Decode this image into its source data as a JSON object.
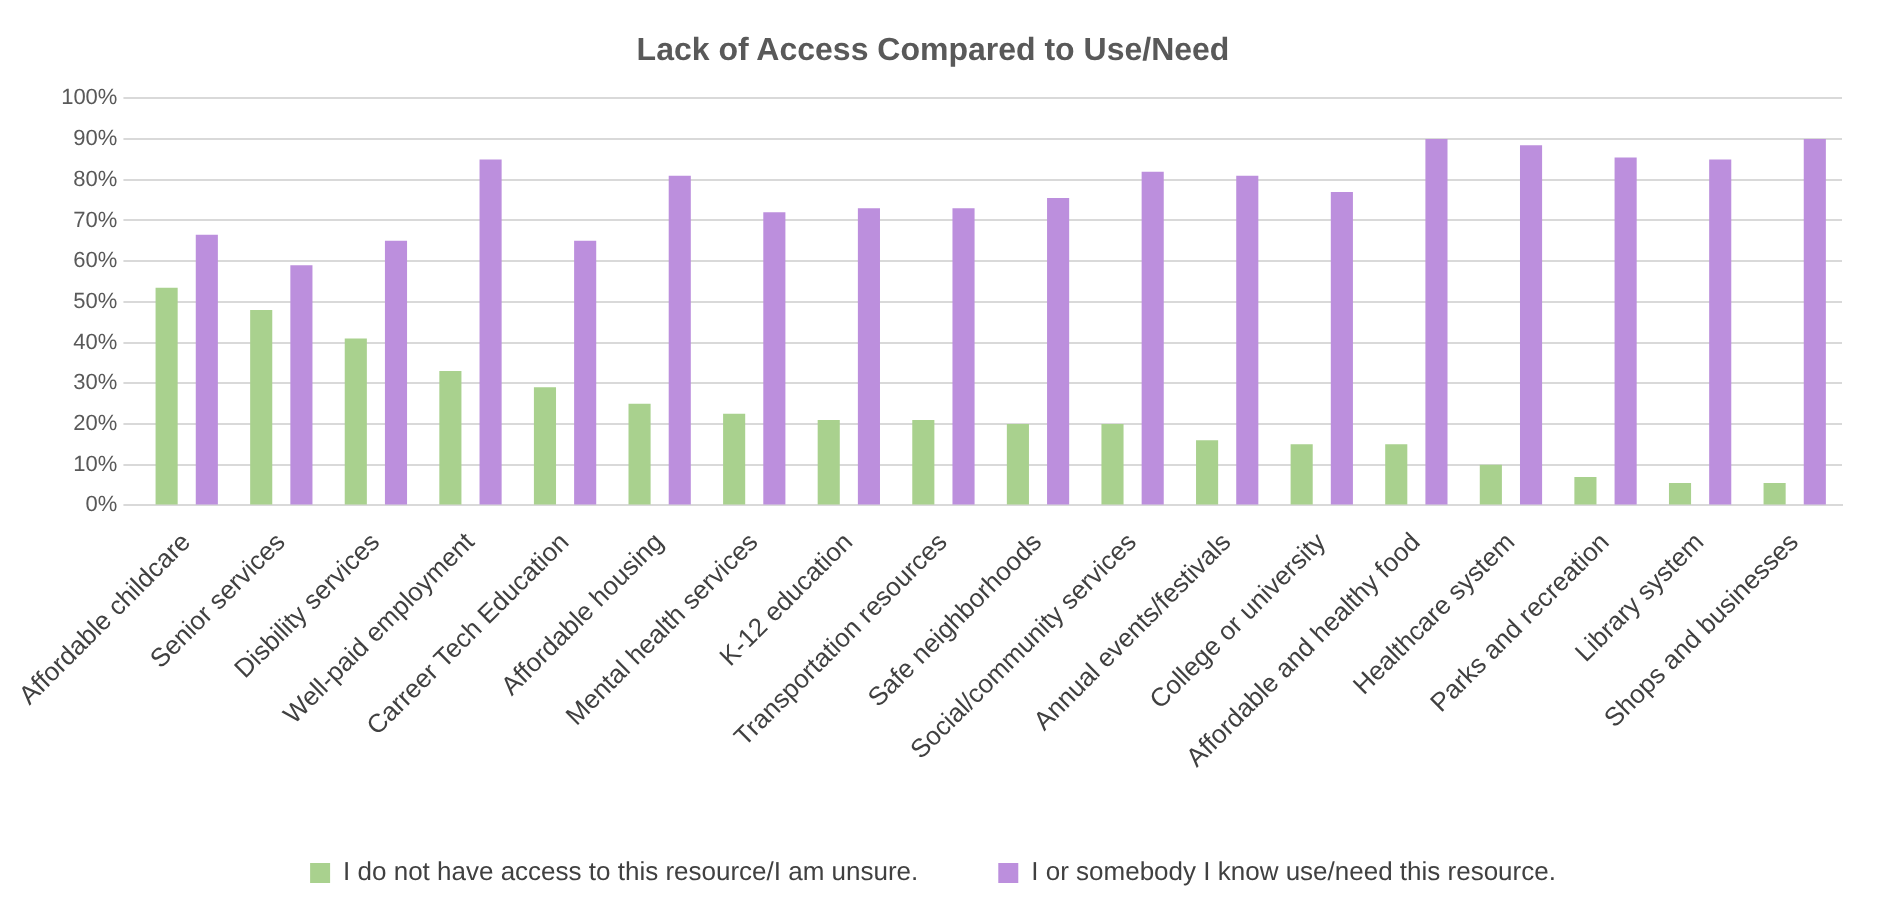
{
  "chart_data": {
    "type": "bar",
    "title": "Lack of Access Compared to Use/Need",
    "categories": [
      "Affordable childcare",
      "Senior services",
      "Disbility services",
      "Well-paid employment",
      "Carreer Tech Education",
      "Affordable housing",
      "Mental health services",
      "K-12 education",
      "Transportation resources",
      "Safe neighborhoods",
      "Social/community services",
      "Annual events/festivals",
      "College or university",
      "Affordable and healthy food",
      "Healthcare system",
      "Parks and recreation",
      "Library system",
      "Shops and businesses"
    ],
    "series": [
      {
        "name": "I do not have access to this resource/I am unsure.",
        "color": "#a9d18e",
        "values": [
          53.5,
          48,
          41,
          33,
          29,
          25,
          22.5,
          21,
          21,
          20,
          20,
          16,
          15,
          15,
          10,
          7,
          5.5,
          5.5
        ]
      },
      {
        "name": "I or somebody I know use/need this resource.",
        "color": "#bc8fdd",
        "values": [
          66.5,
          59,
          65,
          85,
          65,
          81,
          72,
          73,
          73,
          75.5,
          82,
          81,
          77,
          90,
          88.5,
          85.5,
          85,
          90
        ]
      }
    ],
    "ylim": [
      0,
      100
    ],
    "yticks": [
      {
        "value": 0,
        "label": "0%"
      },
      {
        "value": 10,
        "label": "10%"
      },
      {
        "value": 20,
        "label": "20%"
      },
      {
        "value": 30,
        "label": "30%"
      },
      {
        "value": 40,
        "label": "40%"
      },
      {
        "value": 50,
        "label": "50%"
      },
      {
        "value": 60,
        "label": "60%"
      },
      {
        "value": 70,
        "label": "70%"
      },
      {
        "value": 80,
        "label": "80%"
      },
      {
        "value": 90,
        "label": "90%"
      },
      {
        "value": 100,
        "label": "100%"
      }
    ],
    "grid": "y",
    "legend": "bottom"
  }
}
